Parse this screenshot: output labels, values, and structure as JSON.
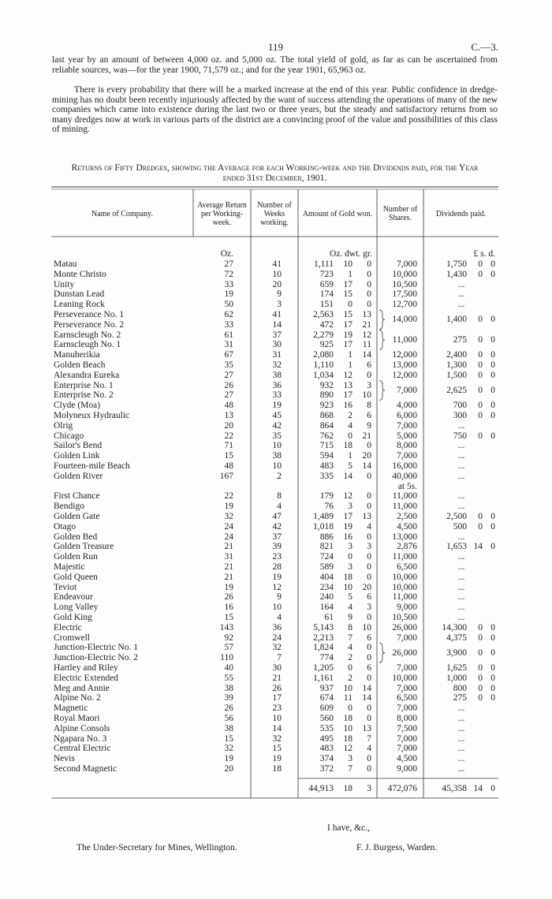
{
  "header": {
    "page_number": "119",
    "reference": "C.—3."
  },
  "paragraphs": [
    "last year by an amount of between 4,000 oz. and 5,000 oz. The total yield of gold, as far as can be ascertained from reliable sources, was—for the year 1900, 71,579 oz.; and for the year 1901, 65,963 oz.",
    "There is every probability that there will be a marked increase at the end of this year. Public confidence in dredge-mining has no doubt been recently injuriously affected by the want of success attending the operations of many of the new companies which came into existence during the last two or three years, but the steady and satisfactory returns from so many dredges now at work in various parts of the district are a convincing proof of the value and possibilities of this class of mining."
  ],
  "table": {
    "title": "Returns of Fifty Dredges, showing the Average for each Working-week and the Dividends paid, for the Year ended 31st December, 1901.",
    "columns": [
      "Name of Company.",
      "Average Return per Working-week.",
      "Number of Weeks working.",
      "Amount of Gold won.",
      "Number of Shares.",
      "Dividends paid."
    ],
    "units": {
      "average": "Oz.",
      "amount": "Oz.  dwt.  gr.",
      "dividends": "£     s.   d."
    },
    "groups": [
      {
        "rows": [
          [
            "Matau",
            "27",
            "41",
            "1,111",
            "10",
            "0",
            "7,000",
            "1,750",
            "0",
            "0"
          ],
          [
            "Monte Christo",
            "72",
            "10",
            "723",
            "1",
            "0",
            "10,000",
            "1,430",
            "0",
            "0"
          ],
          [
            "Unity",
            "33",
            "20",
            "659",
            "17",
            "0",
            "10,500",
            "...",
            null,
            null
          ],
          [
            "Dunstan Lead",
            "19",
            "9",
            "174",
            "15",
            "0",
            "17,500",
            "...",
            null,
            null
          ],
          [
            "Leaning Rock",
            "50",
            "3",
            "151",
            "0",
            "0",
            "12,700",
            "...",
            null,
            null
          ],
          [
            "Perseverance No. 1",
            "62",
            "41",
            "2,563",
            "15",
            "13",
            "14,000",
            "1,400",
            "0",
            "0"
          ],
          [
            "Perseverance No. 2",
            "33",
            "14",
            "472",
            "17",
            "21",
            null,
            null,
            null,
            null
          ],
          [
            "Earnscleugh No. 2",
            "61",
            "37",
            "2,279",
            "19",
            "12",
            "11,000",
            "275",
            "0",
            "0"
          ],
          [
            "Earnscleugh No. 1",
            "31",
            "30",
            "925",
            "17",
            "11",
            null,
            null,
            null,
            null
          ],
          [
            "Manuherikia",
            "67",
            "31",
            "2,080",
            "1",
            "14",
            "12,000",
            "2,400",
            "0",
            "0"
          ],
          [
            "Golden Beach",
            "35",
            "32",
            "1,110",
            "1",
            "6",
            "13,000",
            "1,300",
            "0",
            "0"
          ],
          [
            "Alexandra Eureka",
            "27",
            "38",
            "1,034",
            "12",
            "0",
            "12,000",
            "1,500",
            "0",
            "0"
          ],
          [
            "Enterprise No. 1",
            "26",
            "36",
            "932",
            "13",
            "3",
            "7,000",
            "2,625",
            "0",
            "0"
          ],
          [
            "Enterprise No. 2",
            "27",
            "33",
            "890",
            "17",
            "10",
            null,
            null,
            null,
            null
          ],
          [
            "Clyde (Moa)",
            "48",
            "19",
            "923",
            "16",
            "8",
            "4,000",
            "700",
            "0",
            "0"
          ],
          [
            "Molyneux Hydraulic",
            "13",
            "45",
            "868",
            "2",
            "6",
            "6,000",
            "300",
            "0",
            "0"
          ],
          [
            "Olrig",
            "20",
            "42",
            "864",
            "4",
            "9",
            "7,000",
            "...",
            null,
            null
          ],
          [
            "Chicago",
            "22",
            "35",
            "762",
            "0",
            "21",
            "5,000",
            "750",
            "0",
            "0"
          ],
          [
            "Sailor's Bend",
            "71",
            "10",
            "715",
            "18",
            "0",
            "8,000",
            "...",
            null,
            null
          ],
          [
            "Golden Link",
            "15",
            "38",
            "594",
            "1",
            "20",
            "7,000",
            "...",
            null,
            null
          ],
          [
            "Fourteen-mile Beach",
            "48",
            "10",
            "483",
            "5",
            "14",
            "16,000",
            "...",
            null,
            null
          ],
          [
            "Golden River",
            "167",
            "2",
            "335",
            "14",
            "0",
            "40,000",
            "...",
            null,
            null
          ]
        ],
        "note": "at 5s."
      },
      {
        "rows": [
          [
            "First Chance",
            "22",
            "8",
            "179",
            "12",
            "0",
            "11,000",
            "...",
            null,
            null
          ],
          [
            "Bendigo",
            "19",
            "4",
            "76",
            "3",
            "0",
            "11,000",
            "...",
            null,
            null
          ],
          [
            "Golden Gate",
            "32",
            "47",
            "1,489",
            "17",
            "13",
            "2,500",
            "2,500",
            "0",
            "0"
          ],
          [
            "Otago",
            "24",
            "42",
            "1,018",
            "19",
            "4",
            "4,500",
            "500",
            "0",
            "0"
          ],
          [
            "Golden Bed",
            "24",
            "37",
            "886",
            "16",
            "0",
            "13,000",
            "...",
            null,
            null
          ],
          [
            "Golden Treasure",
            "21",
            "39",
            "821",
            "3",
            "3",
            "2,876",
            "1,653",
            "14",
            "0"
          ],
          [
            "Golden Run",
            "31",
            "23",
            "724",
            "0",
            "0",
            "11,000",
            "...",
            null,
            null
          ],
          [
            "Majestic",
            "21",
            "28",
            "589",
            "3",
            "0",
            "6,500",
            "...",
            null,
            null
          ],
          [
            "Gold Queen",
            "21",
            "19",
            "404",
            "18",
            "0",
            "10,000",
            "...",
            null,
            null
          ],
          [
            "Teviot",
            "19",
            "12",
            "234",
            "10",
            "20",
            "10,000",
            "...",
            null,
            null
          ],
          [
            "Endeavour",
            "26",
            "9",
            "240",
            "5",
            "6",
            "11,000",
            "...",
            null,
            null
          ],
          [
            "Long Valley",
            "16",
            "10",
            "164",
            "4",
            "3",
            "9,000",
            "...",
            null,
            null
          ],
          [
            "Gold King",
            "15",
            "4",
            "61",
            "9",
            "0",
            "10,500",
            "...",
            null,
            null
          ],
          [
            "Electric",
            "143",
            "36",
            "5,143",
            "8",
            "10",
            "26,000",
            "14,300",
            "0",
            "0"
          ],
          [
            "Cromwell",
            "92",
            "24",
            "2,213",
            "7",
            "6",
            "7,000",
            "4,375",
            "0",
            "0"
          ],
          [
            "Junction-Electric No. 1",
            "57",
            "32",
            "1,824",
            "4",
            "0",
            "26,000",
            "3,900",
            "0",
            "0"
          ],
          [
            "Junction-Electric No. 2",
            "110",
            "7",
            "774",
            "2",
            "0",
            null,
            null,
            null,
            null
          ],
          [
            "Hartley and Riley",
            "40",
            "30",
            "1,205",
            "0",
            "6",
            "7,000",
            "1,625",
            "0",
            "0"
          ],
          [
            "Electric Extended",
            "55",
            "21",
            "1,161",
            "2",
            "0",
            "10,000",
            "1,000",
            "0",
            "0"
          ],
          [
            "Meg and Annie",
            "38",
            "26",
            "937",
            "10",
            "14",
            "7,000",
            "800",
            "0",
            "0"
          ],
          [
            "Alpine No. 2",
            "39",
            "17",
            "674",
            "11",
            "14",
            "6,500",
            "275",
            "0",
            "0"
          ],
          [
            "Magnetic",
            "26",
            "23",
            "609",
            "0",
            "0",
            "7,000",
            "...",
            null,
            null
          ],
          [
            "Royal Maori",
            "56",
            "10",
            "560",
            "18",
            "0",
            "8,000",
            "...",
            null,
            null
          ],
          [
            "Alpine Consols",
            "38",
            "14",
            "535",
            "10",
            "13",
            "7,500",
            "...",
            null,
            null
          ],
          [
            "Ngapara No. 3",
            "15",
            "32",
            "495",
            "18",
            "7",
            "7,000",
            "...",
            null,
            null
          ],
          [
            "Central Electric",
            "32",
            "15",
            "483",
            "12",
            "4",
            "7,000",
            "...",
            null,
            null
          ],
          [
            "Nevis",
            "19",
            "19",
            "374",
            "3",
            "0",
            "4,500",
            "...",
            null,
            null
          ],
          [
            "Second Magnetic",
            "20",
            "18",
            "372",
            "7",
            "0",
            "9,000",
            "...",
            null,
            null
          ]
        ]
      }
    ],
    "totals": [
      "44,913",
      "18",
      "3",
      "472,076",
      "45,358",
      "14",
      "0"
    ]
  },
  "signature": {
    "salutation": "I have, &c.,",
    "recipient": "The Under-Secretary for Mines, Wellington.",
    "signer": "F. J. Burgess, Warden."
  }
}
